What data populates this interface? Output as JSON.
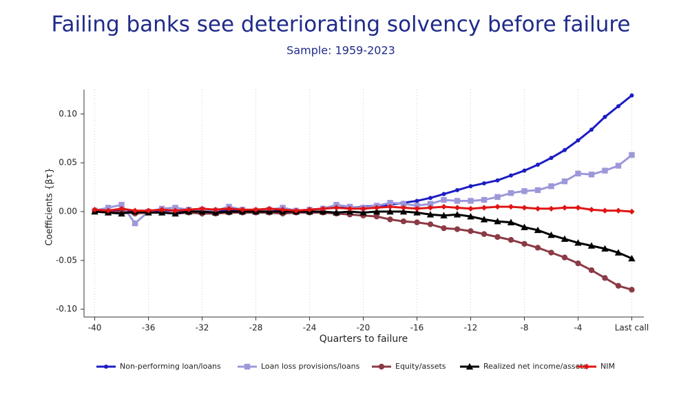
{
  "chart_data": {
    "type": "line",
    "title": "Failing banks see deteriorating solvency before failure",
    "subtitle": "Sample: 1959-2023",
    "x_label": "Quarters to failure",
    "y_label": "Coefficients {βτ}",
    "x": [
      -40,
      -39,
      -38,
      -37,
      -36,
      -35,
      -34,
      -33,
      -32,
      -31,
      -30,
      -29,
      -28,
      -27,
      -26,
      -25,
      -24,
      -23,
      -22,
      -21,
      -20,
      -19,
      -18,
      -17,
      -16,
      -15,
      -14,
      -13,
      -12,
      -11,
      -10,
      -9,
      -8,
      -7,
      -6,
      -5,
      -4,
      -3,
      -2,
      -1,
      0
    ],
    "xlim": [
      -40.8,
      0.9
    ],
    "xticks": [
      -40,
      -36,
      -32,
      -28,
      -24,
      -20,
      -16,
      -12,
      -8,
      -4,
      {
        "value": 0,
        "label": "Last call"
      }
    ],
    "ylim": [
      -0.108,
      0.125
    ],
    "yticks": [
      {
        "value": 0.1,
        "label": "0.10"
      },
      0.05,
      {
        "value": 0,
        "label": "0.00"
      },
      -0.05,
      {
        "value": -0.1,
        "label": "-0.10"
      }
    ],
    "grid": true,
    "series": [
      {
        "name": "Non-performing loan/loans",
        "color": "#1c1cc4",
        "marker": "circle",
        "values": [
          0,
          0,
          0.001,
          0,
          0,
          0.001,
          0.001,
          0,
          0.001,
          0,
          0.001,
          0.001,
          0.001,
          0,
          0.001,
          0.001,
          0.002,
          0.003,
          0.004,
          0.004,
          0.005,
          0.006,
          0.007,
          0.009,
          0.011,
          0.014,
          0.018,
          0.022,
          0.026,
          0.029,
          0.032,
          0.037,
          0.042,
          0.048,
          0.055,
          0.063,
          0.073,
          0.084,
          0.097,
          0.108,
          0.119
        ]
      },
      {
        "name": "Loan loss provisions/loans",
        "color": "#9d98d9",
        "marker": "square",
        "values": [
          0.001,
          0.004,
          0.007,
          -0.012,
          0,
          0.003,
          0.004,
          0.002,
          0.002,
          0.001,
          0.005,
          0.002,
          0.001,
          0.002,
          0.004,
          0.001,
          0.002,
          0.003,
          0.007,
          0.005,
          0.004,
          0.006,
          0.009,
          0.008,
          0.006,
          0.008,
          0.012,
          0.011,
          0.011,
          0.012,
          0.015,
          0.019,
          0.021,
          0.022,
          0.026,
          0.031,
          0.039,
          0.038,
          0.042,
          0.047,
          0.058
        ]
      },
      {
        "name": "Equity/assets",
        "color": "#8b3a46",
        "marker": "circle",
        "values": [
          0,
          -0.001,
          0,
          -0.002,
          -0.001,
          -0.001,
          -0.002,
          -0.001,
          -0.002,
          -0.002,
          -0.001,
          -0.001,
          -0.001,
          -0.001,
          -0.002,
          -0.001,
          -0.001,
          -0.001,
          -0.002,
          -0.003,
          -0.004,
          -0.005,
          -0.008,
          -0.01,
          -0.011,
          -0.013,
          -0.017,
          -0.018,
          -0.02,
          -0.023,
          -0.026,
          -0.029,
          -0.033,
          -0.037,
          -0.042,
          -0.047,
          -0.053,
          -0.06,
          -0.068,
          -0.076,
          -0.08
        ]
      },
      {
        "name": "Realized net income/assets",
        "color": "#000000",
        "marker": "triangle",
        "values": [
          0,
          -0.001,
          -0.002,
          0,
          -0.001,
          -0.001,
          -0.002,
          0,
          0,
          -0.001,
          0,
          0,
          0,
          0,
          0,
          0,
          0,
          0,
          -0.001,
          0,
          -0.001,
          0,
          0,
          0,
          -0.001,
          -0.003,
          -0.004,
          -0.003,
          -0.005,
          -0.008,
          -0.01,
          -0.011,
          -0.016,
          -0.019,
          -0.024,
          -0.028,
          -0.032,
          -0.035,
          -0.038,
          -0.042,
          -0.048
        ]
      },
      {
        "name": "NIM",
        "color": "#e01414",
        "marker": "diamond",
        "values": [
          0.002,
          0.001,
          0.003,
          0.001,
          0.001,
          0.002,
          0.001,
          0.002,
          0.003,
          0.002,
          0.003,
          0.002,
          0.002,
          0.003,
          0.002,
          0.001,
          0.002,
          0.003,
          0.004,
          0.003,
          0.003,
          0.004,
          0.005,
          0.004,
          0.003,
          0.004,
          0.005,
          0.004,
          0.003,
          0.004,
          0.005,
          0.005,
          0.004,
          0.003,
          0.003,
          0.004,
          0.004,
          0.002,
          0.001,
          0.001,
          0
        ]
      }
    ]
  }
}
